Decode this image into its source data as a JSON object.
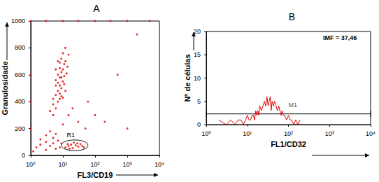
{
  "chart_data": [
    {
      "type": "scatter",
      "title": "A",
      "x_label": "FL3/CD19",
      "y_label": "Granulosidade",
      "color": "#e00000",
      "log": "x",
      "xlim": [
        1,
        10000
      ],
      "xticks": [
        {
          "value": 1,
          "label": "10⁰"
        },
        {
          "value": 10,
          "label": "10¹"
        },
        {
          "value": 100,
          "label": "10²"
        },
        {
          "value": 1000,
          "label": "10³"
        },
        {
          "value": 10000,
          "label": "10⁴"
        }
      ],
      "ylim": [
        0,
        1000
      ],
      "yticks": [
        0,
        200,
        400,
        600,
        800,
        1000
      ],
      "x": [
        5,
        6,
        7,
        8,
        6,
        7,
        9,
        8,
        10,
        6,
        7,
        9,
        8,
        11,
        7,
        9,
        10,
        12,
        8,
        10,
        5,
        9,
        11,
        13,
        6,
        12,
        14,
        7,
        8,
        10,
        4,
        9,
        6,
        11,
        8,
        15,
        12,
        5,
        1.5,
        2,
        3,
        4,
        5,
        6,
        3,
        4,
        2,
        7,
        8,
        5,
        1.2,
        3,
        6,
        9,
        1,
        1,
        1,
        12,
        15,
        18,
        20,
        25,
        30,
        35,
        22,
        16,
        28,
        40,
        14,
        45,
        10,
        15,
        20,
        30,
        50,
        60,
        100,
        200,
        1,
        3,
        10,
        30,
        100,
        300,
        1000,
        5000,
        500,
        1000,
        2000
      ],
      "values": [
        300,
        350,
        400,
        420,
        450,
        480,
        500,
        520,
        550,
        560,
        600,
        620,
        650,
        680,
        700,
        720,
        760,
        800,
        460,
        430,
        380,
        580,
        530,
        610,
        640,
        700,
        660,
        540,
        580,
        640,
        330,
        440,
        520,
        590,
        690,
        750,
        480,
        420,
        60,
        80,
        100,
        70,
        90,
        50,
        150,
        180,
        120,
        110,
        60,
        130,
        30,
        40,
        160,
        90,
        200,
        400,
        600,
        60,
        70,
        80,
        55,
        75,
        65,
        85,
        95,
        50,
        90,
        70,
        85,
        60,
        230,
        300,
        350,
        250,
        200,
        400,
        300,
        250,
        1000,
        1000,
        1000,
        1000,
        1000,
        1000,
        1000,
        1000,
        600,
        200,
        900
      ],
      "gate": {
        "label": "R1",
        "xlim": [
          9,
          60
        ],
        "ylim": [
          35,
          115
        ]
      }
    },
    {
      "type": "line",
      "title": "B",
      "x_label": "FL1/CD32",
      "y_label": "Nº de células",
      "color": "#e00000",
      "log": "x",
      "xlim": [
        1,
        10000
      ],
      "xticks": [
        {
          "value": 1,
          "label": "10⁰"
        },
        {
          "value": 10,
          "label": "10¹"
        },
        {
          "value": 100,
          "label": "10²"
        },
        {
          "value": 1000,
          "label": "10³"
        },
        {
          "value": 10000,
          "label": "10⁴"
        }
      ],
      "ylim": [
        0,
        20
      ],
      "yticks": [
        0,
        5,
        10,
        15,
        20
      ],
      "x": [
        2,
        3,
        4,
        5,
        6,
        7,
        8,
        9,
        10,
        11,
        12,
        13,
        14,
        15,
        16,
        17,
        18,
        19,
        20,
        22,
        24,
        26,
        28,
        30,
        32,
        34,
        36,
        38,
        40,
        43,
        46,
        50,
        54,
        58,
        62,
        66,
        70,
        75,
        80,
        90,
        100,
        110,
        120,
        135,
        150,
        170,
        190
      ],
      "values": [
        1,
        0,
        1,
        0,
        1,
        1,
        0,
        1,
        2,
        1,
        1,
        2,
        2,
        1,
        3,
        2,
        3,
        2,
        4,
        3,
        4,
        5,
        4,
        6,
        4,
        5,
        6,
        3,
        5,
        4,
        5,
        4,
        3,
        4,
        3,
        2,
        3,
        2,
        2,
        1,
        2,
        1,
        1,
        0,
        1,
        0,
        1
      ],
      "gate": {
        "label": "M1",
        "xlim": [
          1,
          10000
        ],
        "y": 2.3
      },
      "annotations": [
        "IMF = 37,46"
      ]
    }
  ]
}
